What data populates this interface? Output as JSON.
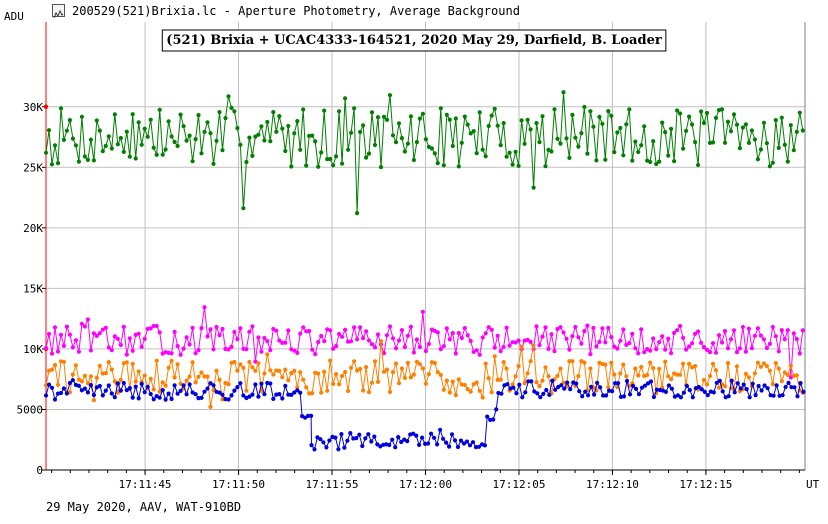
{
  "window": {
    "title": "200529(521)Brixia.lc - Aperture Photometry, Average Background",
    "icon": "lightcurve-app-icon"
  },
  "footer": {
    "text": "29 May 2020, AAV, WAT-910BD"
  },
  "chart_data": {
    "type": "line",
    "title": "(521) Brixia + UCAC4333-164521, 2020 May 29, Darfield, B. Loader",
    "ylabel": "ADU",
    "xlabel": "UT",
    "ylim": [
      0,
      37000
    ],
    "yticks": [
      0,
      5000,
      10000,
      15000,
      20000,
      25000,
      30000
    ],
    "ytick_labels": [
      "0",
      "5000",
      "10K",
      "15K",
      "20K",
      "25K",
      "30K"
    ],
    "xticks": [
      "17:11:45",
      "17:11:50",
      "17:11:55",
      "17:12:00",
      "17:12:05",
      "17:12:10",
      "17:12:15"
    ],
    "xlim_seconds": [
      -5.3,
      35.3
    ],
    "xtick_seconds": [
      0,
      5,
      10,
      15,
      20,
      25,
      30
    ],
    "grid": true,
    "sample_seconds": 0.16,
    "series": [
      {
        "color": "#007f00",
        "segments": [
          {
            "t_start": -5.3,
            "t_end": 35.3,
            "base": 27500,
            "amp": 2500,
            "seed": 7,
            "spike": 4600
          }
        ]
      },
      {
        "color": "#ff00ff",
        "segments": [
          {
            "t_start": -5.3,
            "t_end": 35.3,
            "base": 10700,
            "amp": 1200,
            "seed": 13,
            "spike": 2200
          }
        ]
      },
      {
        "color": "#ff8000",
        "segments": [
          {
            "t_start": -5.3,
            "t_end": 35.3,
            "base": 7700,
            "amp": 1400,
            "seed": 29,
            "spike": 2200
          }
        ]
      },
      {
        "color": "#0000dd",
        "segments": [
          {
            "t_start": -5.3,
            "t_end": 8.4,
            "base": 6500,
            "amp": 700,
            "seed": 41,
            "spike": 1200
          },
          {
            "t_start": 8.4,
            "t_end": 8.9,
            "base": 4900,
            "amp": 900,
            "seed": 43,
            "spike": 0
          },
          {
            "t_start": 8.9,
            "t_end": 18.3,
            "base": 2400,
            "amp": 700,
            "seed": 47,
            "spike": 900
          },
          {
            "t_start": 18.3,
            "t_end": 18.9,
            "base": 4800,
            "amp": 800,
            "seed": 53,
            "spike": 0
          },
          {
            "t_start": 18.9,
            "t_end": 35.3,
            "base": 6700,
            "amp": 700,
            "seed": 59,
            "spike": 1200
          }
        ]
      }
    ],
    "axis_color": "#000000",
    "y_axis_accent_color": "#ff0000",
    "grid_color": "#c0c0c0"
  }
}
